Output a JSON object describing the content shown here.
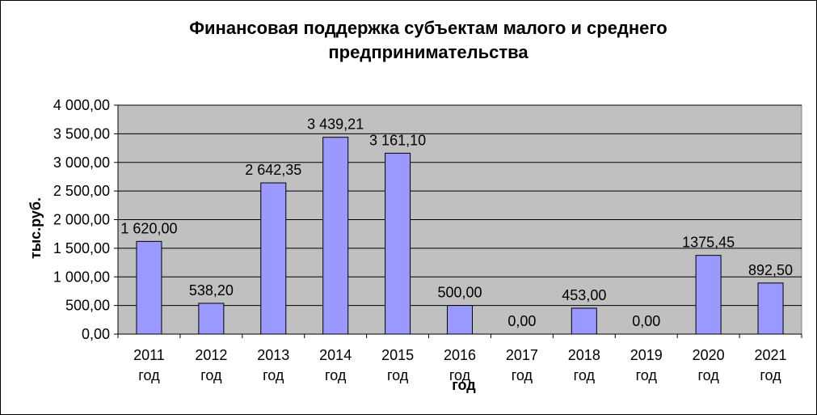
{
  "chart_data": {
    "type": "bar",
    "title_line1": "Финансовая поддержка субъектам малого и среднего",
    "title_line2": "предпринимательства",
    "xlabel": "год",
    "ylabel": "тыс.руб.",
    "ylim": [
      0,
      4000
    ],
    "y_tick_values": [
      0,
      500,
      1000,
      1500,
      2000,
      2500,
      3000,
      3500,
      4000
    ],
    "y_tick_labels": [
      "0,00",
      "500,00",
      "1 000,00",
      "1 500,00",
      "2 000,00",
      "2 500,00",
      "3 000,00",
      "3 500,00",
      "4 000,00"
    ],
    "categories": [
      [
        "2011",
        "год"
      ],
      [
        "2012",
        "год"
      ],
      [
        "2013",
        "год"
      ],
      [
        "2014",
        "год"
      ],
      [
        "2015",
        "год"
      ],
      [
        "2016",
        "год"
      ],
      [
        "2017",
        "год"
      ],
      [
        "2018",
        "год"
      ],
      [
        "2019",
        "год"
      ],
      [
        "2020",
        "год"
      ],
      [
        "2021",
        "год"
      ]
    ],
    "values": [
      1620.0,
      538.2,
      2642.35,
      3439.21,
      3161.1,
      500.0,
      0.0,
      453.0,
      0.0,
      1375.45,
      892.5
    ],
    "data_labels": [
      "1 620,00",
      "538,20",
      "2 642,35",
      "3 439,21",
      "3 161,10",
      "500,00",
      "0,00",
      "453,00",
      "0,00",
      "1375,45",
      "892,50"
    ],
    "grid": true,
    "legend": "none",
    "colors": {
      "bar_fill": "#9999FF",
      "bar_stroke": "#000000",
      "plot_background": "#C0C0C0",
      "gridline": "#000000"
    }
  }
}
